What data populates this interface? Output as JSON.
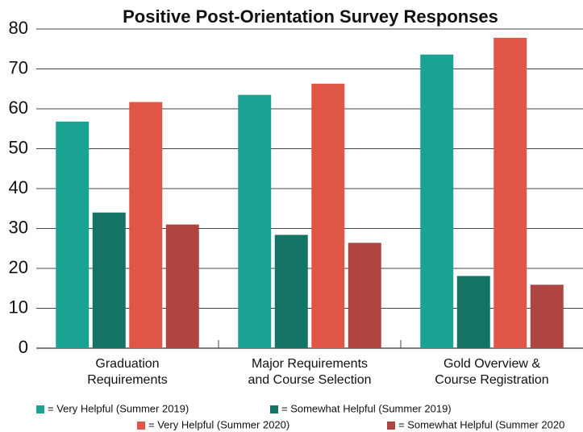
{
  "chart_data": {
    "type": "bar",
    "title": "Positive Post-Orientation Survey Responses",
    "categories": [
      [
        "Graduation",
        "Requirements"
      ],
      [
        "Major Requirements",
        "and Course Selection"
      ],
      [
        "Gold Overview &",
        "Course Registration"
      ]
    ],
    "series": [
      {
        "name": "= Very Helpful (Summer 2019)",
        "color": "#1aa393",
        "values": [
          56.8,
          63.5,
          73.6
        ]
      },
      {
        "name": "= Somewhat Helpful (Summer 2019)",
        "color": "#137466",
        "values": [
          34,
          28.4,
          18.1
        ]
      },
      {
        "name": "= Very Helpful (Summer 2020)",
        "color": "#e05646",
        "values": [
          61.7,
          66.3,
          77.8
        ]
      },
      {
        "name": "= Somewhat Helpful (Summer 2020",
        "color": "#b04440",
        "values": [
          31,
          26.4,
          15.9
        ]
      }
    ],
    "ylim": [
      0,
      80
    ],
    "yticks": [
      0,
      10,
      20,
      30,
      40,
      50,
      60,
      70,
      80
    ],
    "grid": true
  }
}
